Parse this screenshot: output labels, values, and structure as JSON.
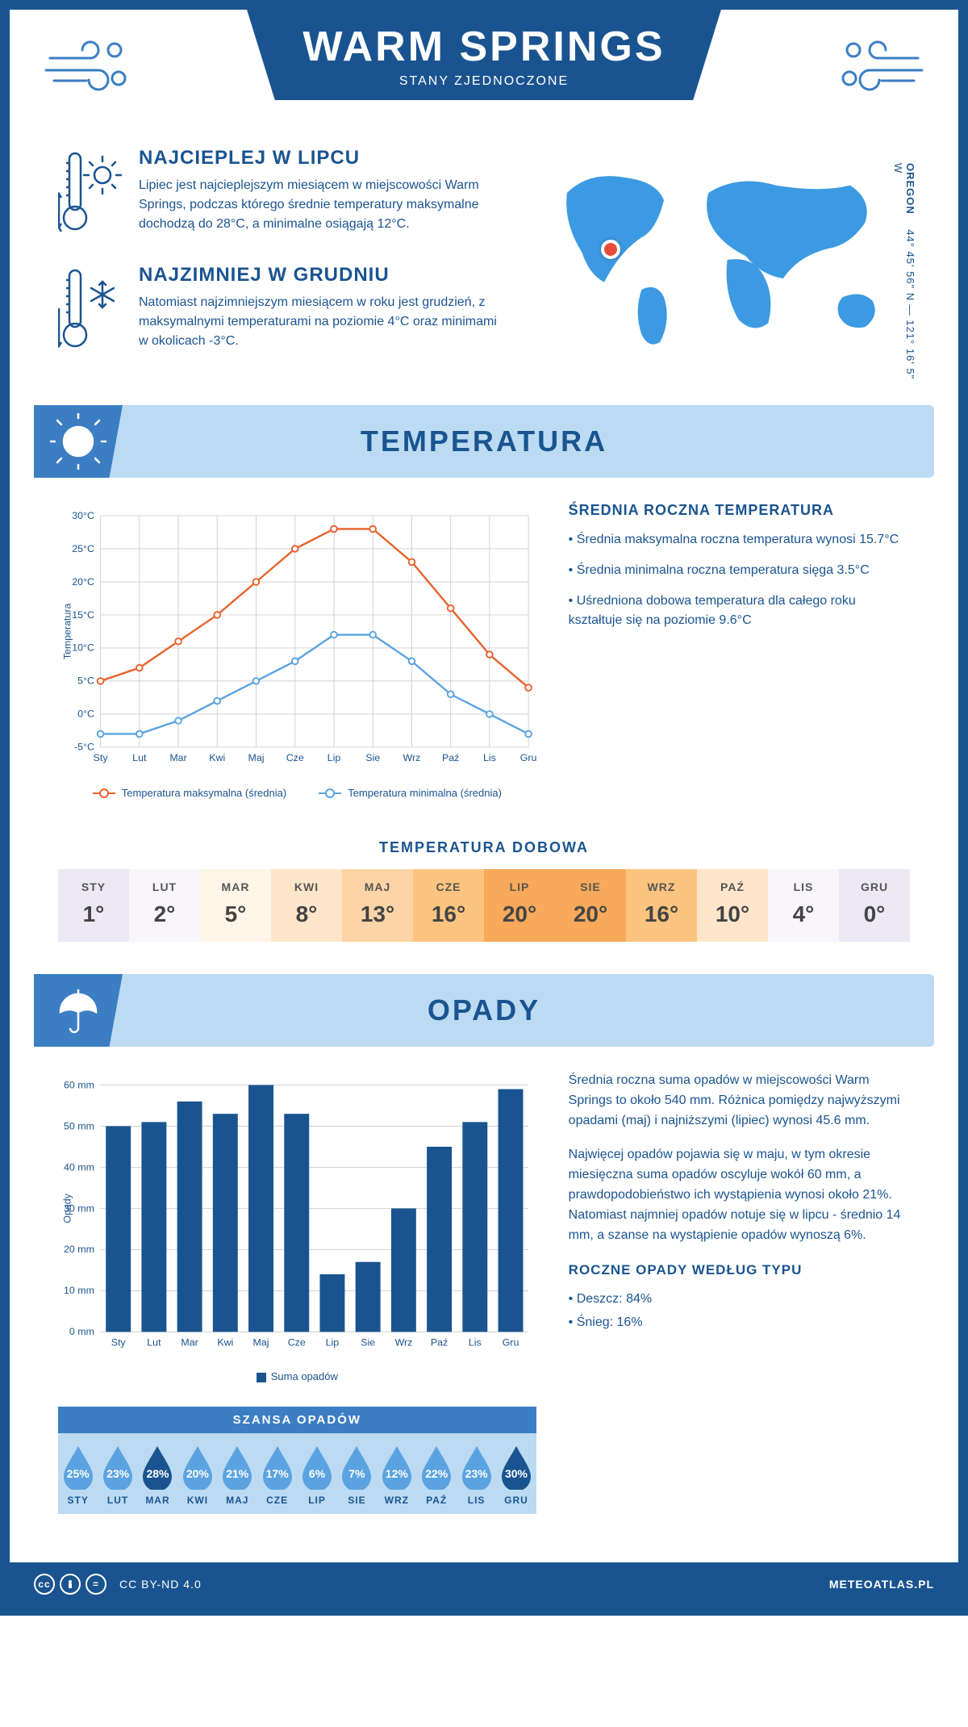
{
  "header": {
    "title": "WARM SPRINGS",
    "subtitle": "STANY ZJEDNOCZONE"
  },
  "location": {
    "region": "OREGON",
    "coords": "44° 45' 56\" N — 121° 16' 5\" W",
    "marker_color": "#e74c3c",
    "map_color": "#3b9ae1"
  },
  "warmest": {
    "heading": "NAJCIEPLEJ W LIPCU",
    "text": "Lipiec jest najcieplejszym miesiącem w miejscowości Warm Springs, podczas którego średnie temperatury maksymalne dochodzą do 28°C, a minimalne osiągają 12°C."
  },
  "coldest": {
    "heading": "NAJZIMNIEJ W GRUDNIU",
    "text": "Natomiast najzimniejszym miesiącem w roku jest grudzień, z maksymalnymi temperaturami na poziomie 4°C oraz minimami w okolicach -3°C."
  },
  "temp_section_title": "TEMPERATURA",
  "temp_chart": {
    "type": "line",
    "months": [
      "Sty",
      "Lut",
      "Mar",
      "Kwi",
      "Maj",
      "Cze",
      "Lip",
      "Sie",
      "Wrz",
      "Paź",
      "Lis",
      "Gru"
    ],
    "max_series": [
      5,
      7,
      11,
      15,
      20,
      25,
      28,
      28,
      23,
      16,
      9,
      4
    ],
    "min_series": [
      -3,
      -3,
      -1,
      2,
      5,
      8,
      12,
      12,
      8,
      3,
      0,
      -3
    ],
    "max_color": "#e8622c",
    "min_color": "#5ba3e0",
    "y_axis_label": "Temperatura",
    "ylim": [
      -5,
      30
    ],
    "ytick_step": 5,
    "y_unit": "°C",
    "grid_color": "#d0d0d0",
    "background_color": "#ffffff",
    "legend_max": "Temperatura maksymalna (średnia)",
    "legend_min": "Temperatura minimalna (średnia)"
  },
  "temp_info": {
    "heading": "ŚREDNIA ROCZNA TEMPERATURA",
    "bullets": [
      "• Średnia maksymalna roczna temperatura wynosi 15.7°C",
      "• Średnia minimalna roczna temperatura sięga 3.5°C",
      "• Uśredniona dobowa temperatura dla całego roku kształtuje się na poziomie 9.6°C"
    ]
  },
  "daily_temp": {
    "title": "TEMPERATURA DOBOWA",
    "months": [
      "STY",
      "LUT",
      "MAR",
      "KWI",
      "MAJ",
      "CZE",
      "LIP",
      "SIE",
      "WRZ",
      "PAŹ",
      "LIS",
      "GRU"
    ],
    "values": [
      "1°",
      "2°",
      "5°",
      "8°",
      "13°",
      "16°",
      "20°",
      "20°",
      "16°",
      "10°",
      "4°",
      "0°"
    ],
    "colors": [
      "#ece8f4",
      "#f8f5fb",
      "#fff4e8",
      "#ffe6cb",
      "#fdd4a6",
      "#fcc47f",
      "#f8a95a",
      "#f8a95a",
      "#fcc47f",
      "#ffe6cb",
      "#f8f5fb",
      "#ece8f4"
    ]
  },
  "precip_section_title": "OPADY",
  "precip_chart": {
    "type": "bar",
    "months": [
      "Sty",
      "Lut",
      "Mar",
      "Kwi",
      "Maj",
      "Cze",
      "Lip",
      "Sie",
      "Wrz",
      "Paź",
      "Lis",
      "Gru"
    ],
    "values": [
      50,
      51,
      56,
      53,
      60,
      53,
      14,
      17,
      30,
      45,
      51,
      59
    ],
    "bar_color": "#1a5490",
    "y_axis_label": "Opady",
    "ylim": [
      0,
      60
    ],
    "ytick_step": 10,
    "y_unit": " mm",
    "grid_color": "#d0d0d0",
    "legend": "Suma opadów"
  },
  "precip_text": {
    "p1": "Średnia roczna suma opadów w miejscowości Warm Springs to około 540 mm. Różnica pomiędzy najwyższymi opadami (maj) i najniższymi (lipiec) wynosi 45.6 mm.",
    "p2": "Najwięcej opadów pojawia się w maju, w tym okresie miesięczna suma opadów oscyluje wokół 60 mm, a prawdopodobieństwo ich wystąpienia wynosi około 21%. Natomiast najmniej opadów notuje się w lipcu - średnio 14 mm, a szanse na wystąpienie opadów wynoszą 6%."
  },
  "chance": {
    "title": "SZANSA OPADÓW",
    "months": [
      "STY",
      "LUT",
      "MAR",
      "KWI",
      "MAJ",
      "CZE",
      "LIP",
      "SIE",
      "WRZ",
      "PAŹ",
      "LIS",
      "GRU"
    ],
    "values": [
      "25%",
      "23%",
      "28%",
      "20%",
      "21%",
      "17%",
      "6%",
      "7%",
      "12%",
      "22%",
      "23%",
      "30%"
    ],
    "drop_light": "#5ba3e0",
    "drop_dark": "#1a5490",
    "dark_indices": [
      2,
      11
    ]
  },
  "precip_type": {
    "heading": "ROCZNE OPADY WEDŁUG TYPU",
    "lines": [
      "• Deszcz: 84%",
      "• Śnieg: 16%"
    ]
  },
  "footer": {
    "license": "CC BY-ND 4.0",
    "site": "METEOATLAS.PL"
  },
  "palette": {
    "primary": "#1a5490",
    "light_blue": "#bcdaf2",
    "mid_blue": "#3b7ec4"
  }
}
